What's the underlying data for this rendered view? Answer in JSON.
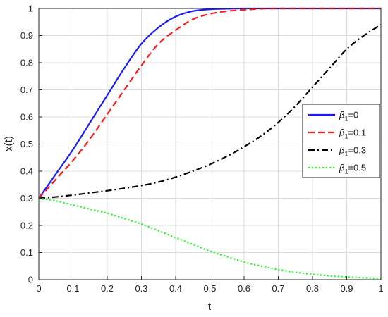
{
  "chart_data": {
    "type": "line",
    "title": "",
    "xlabel": "t",
    "ylabel": "x(t)",
    "xlim": [
      0,
      1
    ],
    "ylim": [
      0,
      1
    ],
    "grid": true,
    "legend_position": "right",
    "x_ticks": [
      "0",
      "0.1",
      "0.2",
      "0.3",
      "0.4",
      "0.5",
      "0.6",
      "0.7",
      "0.8",
      "0.9",
      "1"
    ],
    "y_ticks": [
      "0",
      "0.1",
      "0.2",
      "0.3",
      "0.4",
      "0.5",
      "0.6",
      "0.7",
      "0.8",
      "0.9",
      "1"
    ],
    "x": [
      0,
      0.05,
      0.1,
      0.15,
      0.2,
      0.25,
      0.3,
      0.35,
      0.4,
      0.45,
      0.5,
      0.55,
      0.6,
      0.65,
      0.7,
      0.75,
      0.8,
      0.85,
      0.9,
      0.95,
      1.0
    ],
    "series": [
      {
        "legend_symbol": "β",
        "legend_subscript": "1",
        "legend_value": "=0",
        "color": "#1a1aff",
        "dash": "solid",
        "values": [
          0.3,
          0.39,
          0.48,
          0.58,
          0.68,
          0.78,
          0.87,
          0.93,
          0.97,
          0.99,
          0.997,
          0.999,
          1.0,
          1.0,
          1.0,
          1.0,
          1.0,
          1.0,
          1.0,
          1.0,
          1.0
        ]
      },
      {
        "legend_symbol": "β",
        "legend_subscript": "1",
        "legend_value": "=0.1",
        "color": "#ff1a1a",
        "dash": "dashed",
        "values": [
          0.3,
          0.37,
          0.44,
          0.52,
          0.61,
          0.7,
          0.79,
          0.87,
          0.92,
          0.96,
          0.98,
          0.99,
          0.995,
          0.999,
          1.0,
          1.0,
          1.0,
          1.0,
          1.0,
          1.0,
          1.0
        ]
      },
      {
        "legend_symbol": "β",
        "legend_subscript": "1",
        "legend_value": "=0.3",
        "color": "#000000",
        "dash": "dashdot",
        "values": [
          0.3,
          0.305,
          0.312,
          0.32,
          0.328,
          0.337,
          0.347,
          0.36,
          0.378,
          0.4,
          0.425,
          0.455,
          0.49,
          0.53,
          0.58,
          0.64,
          0.71,
          0.78,
          0.85,
          0.9,
          0.94
        ]
      },
      {
        "legend_symbol": "β",
        "legend_subscript": "1",
        "legend_value": "=0.5",
        "color": "#1aff1a",
        "dash": "dotted",
        "values": [
          0.3,
          0.29,
          0.275,
          0.26,
          0.245,
          0.225,
          0.205,
          0.18,
          0.155,
          0.13,
          0.105,
          0.085,
          0.065,
          0.05,
          0.037,
          0.027,
          0.02,
          0.014,
          0.01,
          0.007,
          0.005
        ]
      }
    ]
  }
}
